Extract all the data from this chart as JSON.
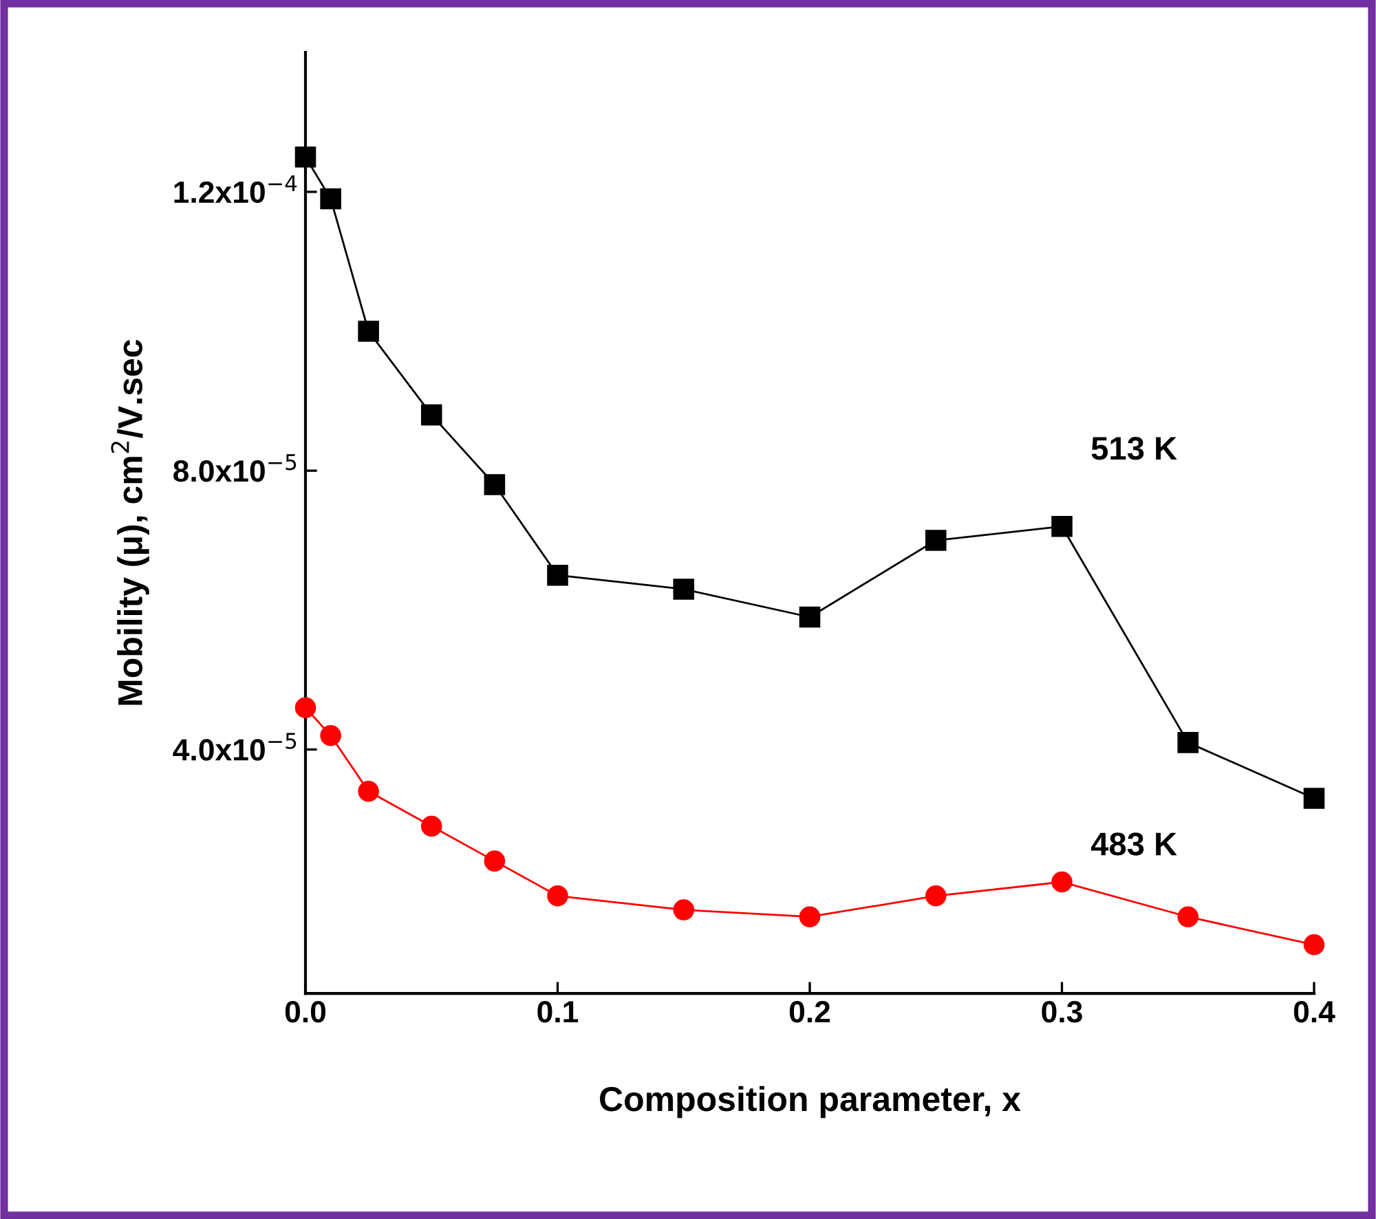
{
  "chart_data": {
    "type": "line",
    "xlabel": "Composition parameter, x",
    "ylabel": "Mobility (μ), cm$^{2}$/V.sec",
    "xlim": [
      0,
      0.4
    ],
    "xticks": [
      {
        "value": 0,
        "label": "0.0"
      },
      0.1,
      0.2,
      0.3,
      0.4
    ],
    "ylim": [
      5e-06,
      0.00014
    ],
    "yticks": [
      {
        "value": 4e-05,
        "label": "4.0x10$^{−5}$"
      },
      {
        "value": 8e-05,
        "label": "8.0x10$^{−5}$"
      },
      {
        "value": 0.00012,
        "label": "1.2x10$^{−4}$"
      }
    ],
    "x": [
      0,
      0.01,
      0.025,
      0.05,
      0.075,
      0.1,
      0.15,
      0.2,
      0.25,
      0.3,
      0.35,
      0.4
    ],
    "grid": false,
    "legend": false,
    "line_style": "solid",
    "series": [
      {
        "name": "513 K",
        "color": "#000000",
        "marker": "square",
        "values": [
          0.000125,
          0.000119,
          0.0001,
          8.8e-05,
          7.8e-05,
          6.5e-05,
          6.3e-05,
          5.9e-05,
          7e-05,
          7.2e-05,
          4.1e-05,
          3.3e-05
        ]
      },
      {
        "name": "483 K",
        "color": "#ff0000",
        "marker": "circle",
        "values": [
          4.6e-05,
          4.2e-05,
          3.4e-05,
          2.9e-05,
          2.4e-05,
          1.9e-05,
          1.7e-05,
          1.6e-05,
          1.9e-05,
          2.1e-05,
          1.6e-05,
          1.2e-05
        ]
      }
    ]
  }
}
